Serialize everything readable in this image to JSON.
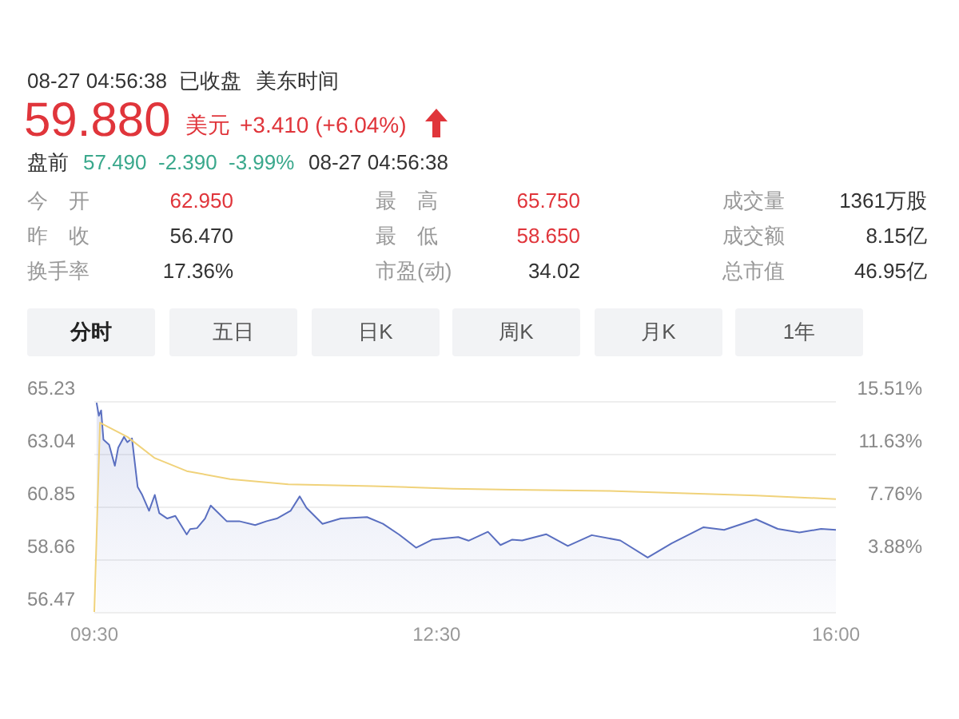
{
  "chart_data": [
    {
      "type": "other",
      "annotations": [
        "08-27 04:56:38",
        "已收盘",
        "美东时间",
        "59.880",
        "美元",
        "+3.410 (+6.04%)",
        "盘前",
        "57.490",
        "-2.390",
        "-3.99%",
        "08-27 04:56:38",
        "今　开",
        "62.950",
        "最　高",
        "65.750",
        "成交量",
        "1361万股",
        "昨　收",
        "56.470",
        "最　低",
        "58.650",
        "成交额",
        "8.15亿",
        "换手率",
        "17.36%",
        "市盈(动)",
        "34.02",
        "总市值",
        "46.95亿",
        "分时",
        "五日",
        "日K",
        "周K",
        "月K",
        "1年"
      ]
    },
    {
      "type": "line",
      "xlim": [
        9.5,
        16
      ],
      "xticks": [
        {
          "value": 9.5,
          "label": "09:30"
        },
        {
          "value": 12.5,
          "label": "12:30"
        },
        {
          "value": 16,
          "label": "16:00"
        }
      ],
      "ylim": [
        56.47,
        65.23
      ],
      "yticks": [
        56.47,
        58.66,
        60.85,
        63.04,
        65.23
      ],
      "y2lim": [
        0,
        15.51
      ],
      "y2ticks": [
        {
          "value": 0,
          "label": null
        },
        {
          "value": 3.88,
          "label": "3.88%"
        },
        {
          "value": 7.76,
          "label": "7.76%"
        },
        {
          "value": 11.63,
          "label": "11.63%"
        },
        {
          "value": 15.51,
          "label": "15.51%"
        }
      ],
      "grid": "y",
      "series": [
        {
          "type": "area",
          "color": "#5a6fc0",
          "x": [
            9.52,
            9.54,
            9.56,
            9.58,
            9.63,
            9.68,
            9.71,
            9.76,
            9.79,
            9.83,
            9.88,
            9.92,
            9.98,
            10.03,
            10.07,
            10.14,
            10.21,
            10.31,
            10.34,
            10.4,
            10.47,
            10.52,
            10.59,
            10.66,
            10.77,
            10.91,
            11.01,
            11.1,
            11.22,
            11.3,
            11.36,
            11.5,
            11.66,
            11.89,
            12.03,
            12.17,
            12.32,
            12.46,
            12.69,
            12.78,
            12.95,
            13.06,
            13.16,
            13.25,
            13.46,
            13.65,
            13.86,
            14.11,
            14.35,
            14.56,
            14.84,
            15.02,
            15.3,
            15.49,
            15.68,
            15.87,
            16
          ],
          "values": [
            65.16,
            64.62,
            64.84,
            63.63,
            63.41,
            62.54,
            63.3,
            63.74,
            63.52,
            63.68,
            61.66,
            61.33,
            60.67,
            61.33,
            60.57,
            60.35,
            60.46,
            59.69,
            59.91,
            59.95,
            60.35,
            60.89,
            60.57,
            60.24,
            60.24,
            60.08,
            60.24,
            60.35,
            60.67,
            61.27,
            60.79,
            60.13,
            60.35,
            60.41,
            60.13,
            59.69,
            59.14,
            59.47,
            59.58,
            59.43,
            59.8,
            59.25,
            59.47,
            59.44,
            59.7,
            59.21,
            59.66,
            59.44,
            58.73,
            59.32,
            59.99,
            59.88,
            60.32,
            59.92,
            59.77,
            59.92,
            59.88
          ]
        },
        {
          "type": "line",
          "color": "#f0d27a",
          "x": [
            9.5,
            9.55,
            9.79,
            10.03,
            10.31,
            10.69,
            11.2,
            11.94,
            12.64,
            13.16,
            14.0,
            15.3,
            16
          ],
          "values": [
            56.47,
            64.33,
            63.74,
            62.86,
            62.32,
            61.99,
            61.77,
            61.7,
            61.59,
            61.55,
            61.5,
            61.31,
            61.16
          ]
        }
      ]
    }
  ]
}
